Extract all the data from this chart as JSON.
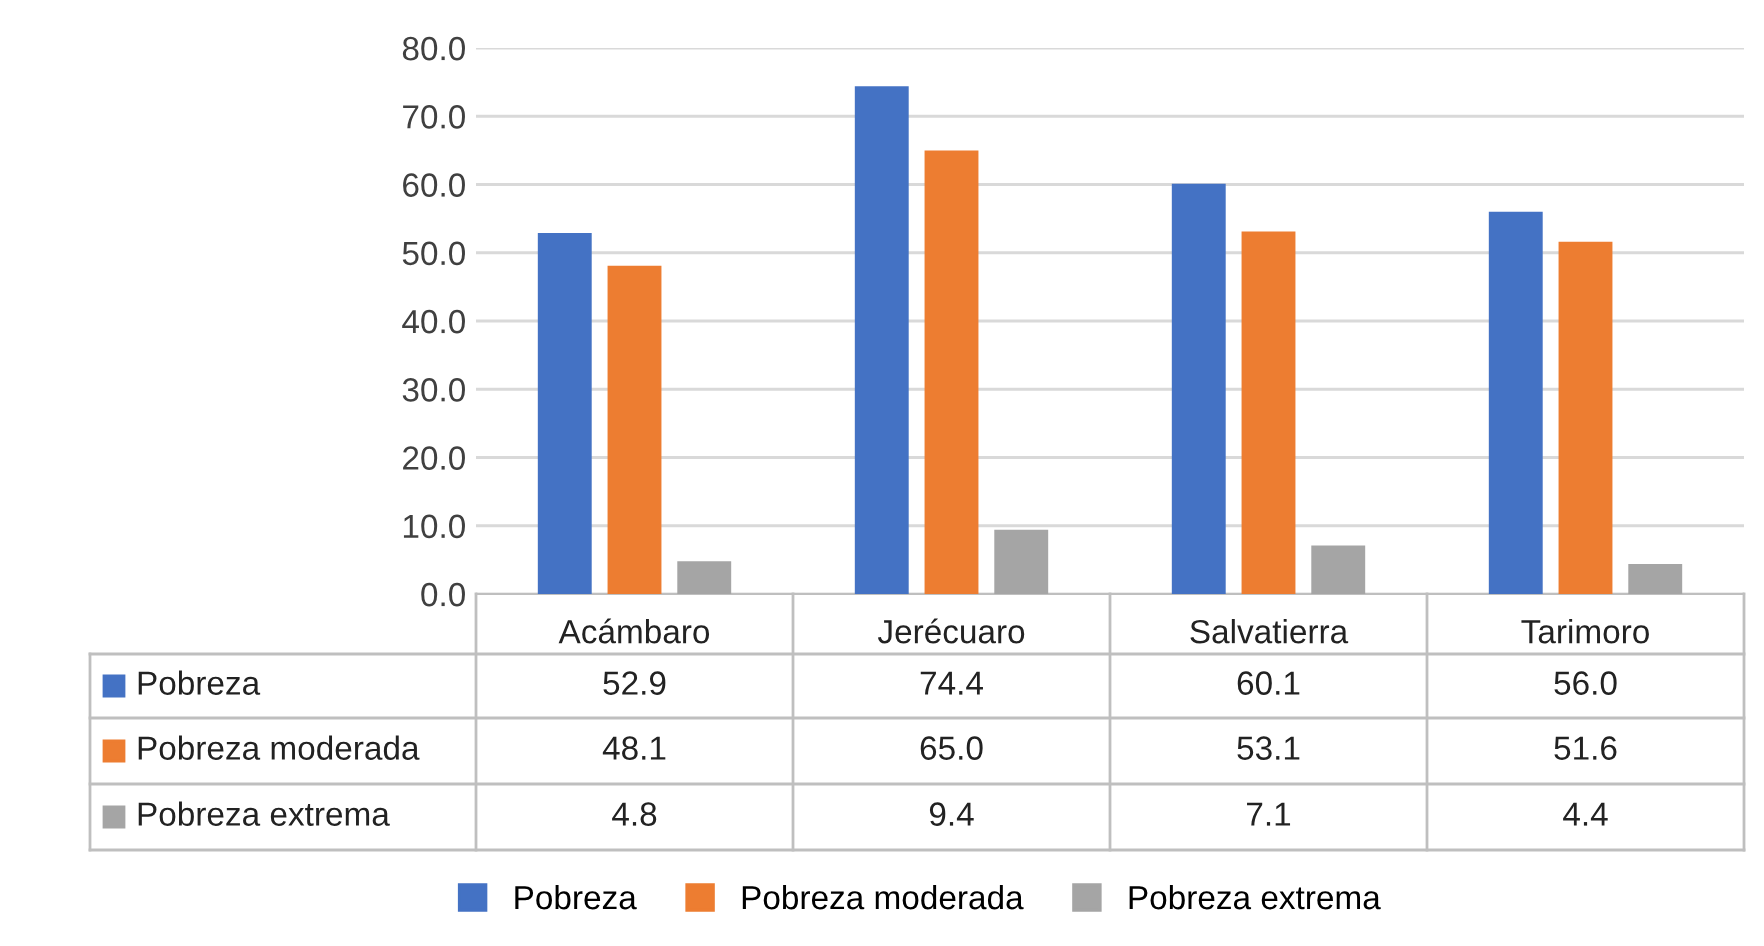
{
  "chart_data": {
    "type": "bar",
    "categories": [
      "Acámbaro",
      "Jerécuaro",
      "Salvatierra",
      "Tarimoro"
    ],
    "series": [
      {
        "name": "Pobreza",
        "color": "#4472c4",
        "values": [
          52.9,
          74.4,
          60.1,
          56.0
        ],
        "value_labels": [
          "52.9",
          "74.4",
          "60.1",
          "56.0"
        ]
      },
      {
        "name": "Pobreza moderada",
        "color": "#ed7d31",
        "values": [
          48.1,
          65.0,
          53.1,
          51.6
        ],
        "value_labels": [
          "48.1",
          "65.0",
          "53.1",
          "51.6"
        ]
      },
      {
        "name": "Pobreza extrema",
        "color": "#a5a5a5",
        "values": [
          4.8,
          9.4,
          7.1,
          4.4
        ],
        "value_labels": [
          "4.8",
          "9.4",
          "7.1",
          "4.4"
        ]
      }
    ],
    "ylim": [
      0,
      80
    ],
    "yticks": [
      {
        "value": 0,
        "label": "0.0"
      },
      {
        "value": 10,
        "label": "10.0"
      },
      {
        "value": 20,
        "label": "20.0"
      },
      {
        "value": 30,
        "label": "30.0"
      },
      {
        "value": 40,
        "label": "40.0"
      },
      {
        "value": 50,
        "label": "50.0"
      },
      {
        "value": 60,
        "label": "60.0"
      },
      {
        "value": 70,
        "label": "70.0"
      },
      {
        "value": 80,
        "label": "80.0"
      }
    ],
    "grid": "y",
    "legend": "bottom"
  }
}
